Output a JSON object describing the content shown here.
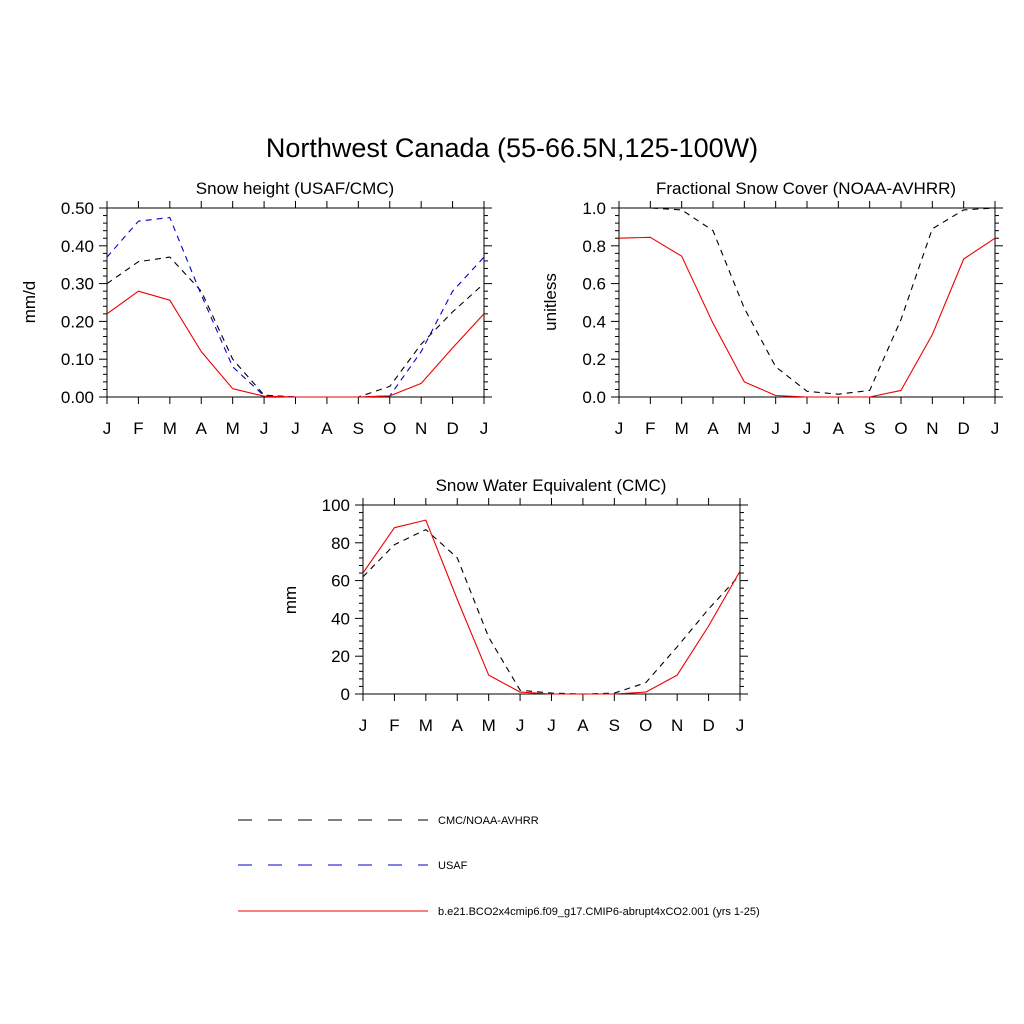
{
  "page_title": "Northwest Canada (55-66.5N,125-100W)",
  "colors": {
    "cmc": "#000000",
    "usaf": "#0000cc",
    "model": "#ee0000"
  },
  "legend": [
    {
      "key": "cmc",
      "label": "CMC/NOAA-AVHRR",
      "style": "dashed"
    },
    {
      "key": "usaf",
      "label": "USAF",
      "style": "dashed"
    },
    {
      "key": "model",
      "label": "b.e21.BCO2x4cmip6.f09_g17.CMIP6-abrupt4xCO2.001 (yrs 1-25)",
      "style": "solid"
    }
  ],
  "chart_data": [
    {
      "id": "snow-height",
      "type": "line",
      "title": "Snow height (USAF/CMC)",
      "xlabel": "",
      "ylabel": "mm/d",
      "categories": [
        "J",
        "F",
        "M",
        "A",
        "M",
        "J",
        "J",
        "A",
        "S",
        "O",
        "N",
        "D",
        "J"
      ],
      "ylim": [
        0,
        0.5
      ],
      "yticks": [
        0,
        0.1,
        0.2,
        0.3,
        0.4,
        0.5
      ],
      "ytick_labels": [
        "0.00",
        "0.10",
        "0.20",
        "0.30",
        "0.40",
        "0.50"
      ],
      "series": [
        {
          "name": "CMC/NOAA-AVHRR",
          "key": "cmc",
          "dash": true,
          "values": [
            0.3,
            0.358,
            0.37,
            0.28,
            0.1,
            0.005,
            0.0,
            0.0,
            0.0,
            0.028,
            0.14,
            0.225,
            0.3
          ]
        },
        {
          "name": "USAF",
          "key": "usaf",
          "dash": true,
          "values": [
            0.37,
            0.465,
            0.475,
            0.27,
            0.08,
            0.003,
            0.0,
            0.0,
            0.0,
            0.003,
            0.12,
            0.28,
            0.37
          ]
        },
        {
          "name": "b.e21.BCO2x4cmip6.f09_g17.CMIP6-abrupt4xCO2.001 (yrs 1-25)",
          "key": "model",
          "dash": false,
          "values": [
            0.22,
            0.28,
            0.256,
            0.12,
            0.022,
            0.002,
            0.0,
            0.0,
            0.0,
            0.003,
            0.036,
            0.13,
            0.22
          ]
        }
      ]
    },
    {
      "id": "snow-cover",
      "type": "line",
      "title": "Fractional Snow Cover (NOAA-AVHRR)",
      "xlabel": "",
      "ylabel": "unitless",
      "categories": [
        "J",
        "F",
        "M",
        "A",
        "M",
        "J",
        "J",
        "A",
        "S",
        "O",
        "N",
        "D",
        "J"
      ],
      "ylim": [
        0,
        1
      ],
      "yticks": [
        0,
        0.2,
        0.4,
        0.6,
        0.8,
        1.0
      ],
      "ytick_labels": [
        "0.0",
        "0.2",
        "0.4",
        "0.6",
        "0.8",
        "1.0"
      ],
      "series": [
        {
          "name": "CMC/NOAA-AVHRR",
          "key": "cmc",
          "dash": true,
          "values": [
            1.0,
            1.0,
            0.99,
            0.88,
            0.47,
            0.16,
            0.03,
            0.015,
            0.035,
            0.41,
            0.89,
            0.99,
            1.0
          ]
        },
        {
          "name": "b.e21.BCO2x4cmip6.f09_g17.CMIP6-abrupt4xCO2.001 (yrs 1-25)",
          "key": "model",
          "dash": false,
          "values": [
            0.84,
            0.845,
            0.745,
            0.39,
            0.08,
            0.008,
            0.0,
            0.0,
            0.0,
            0.035,
            0.33,
            0.73,
            0.84
          ]
        }
      ]
    },
    {
      "id": "swe",
      "type": "line",
      "title": "Snow Water Equivalent (CMC)",
      "xlabel": "",
      "ylabel": "mm",
      "categories": [
        "J",
        "F",
        "M",
        "A",
        "M",
        "J",
        "J",
        "A",
        "S",
        "O",
        "N",
        "D",
        "J"
      ],
      "ylim": [
        0,
        100
      ],
      "yticks": [
        0,
        20,
        40,
        60,
        80,
        100
      ],
      "ytick_labels": [
        "0",
        "20",
        "40",
        "60",
        "80",
        "100"
      ],
      "series": [
        {
          "name": "CMC/NOAA-AVHRR",
          "key": "cmc",
          "dash": true,
          "values": [
            62,
            79,
            87,
            72,
            30,
            2,
            0.5,
            0,
            0.5,
            6,
            25,
            45,
            63
          ]
        },
        {
          "name": "b.e21.BCO2x4cmip6.f09_g17.CMIP6-abrupt4xCO2.001 (yrs 1-25)",
          "key": "model",
          "dash": false,
          "values": [
            64,
            88,
            92,
            50,
            10,
            1,
            0,
            0,
            0,
            1,
            10,
            36,
            65
          ]
        }
      ]
    }
  ]
}
